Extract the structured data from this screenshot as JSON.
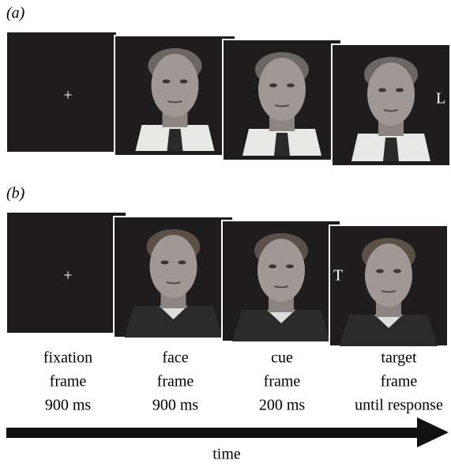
{
  "panels": [
    {
      "label": "(a)",
      "fixation_symbol": "+",
      "target_letter": "L"
    },
    {
      "label": "(b)",
      "fixation_symbol": "+",
      "target_letter": "T"
    }
  ],
  "frames": [
    {
      "lines": [
        "fixation",
        "frame",
        "900 ms"
      ]
    },
    {
      "lines": [
        "face",
        "frame",
        "900 ms"
      ]
    },
    {
      "lines": [
        "cue",
        "frame",
        "200 ms"
      ]
    },
    {
      "lines": [
        "target",
        "frame",
        "until response"
      ]
    }
  ],
  "axis_label": "time"
}
